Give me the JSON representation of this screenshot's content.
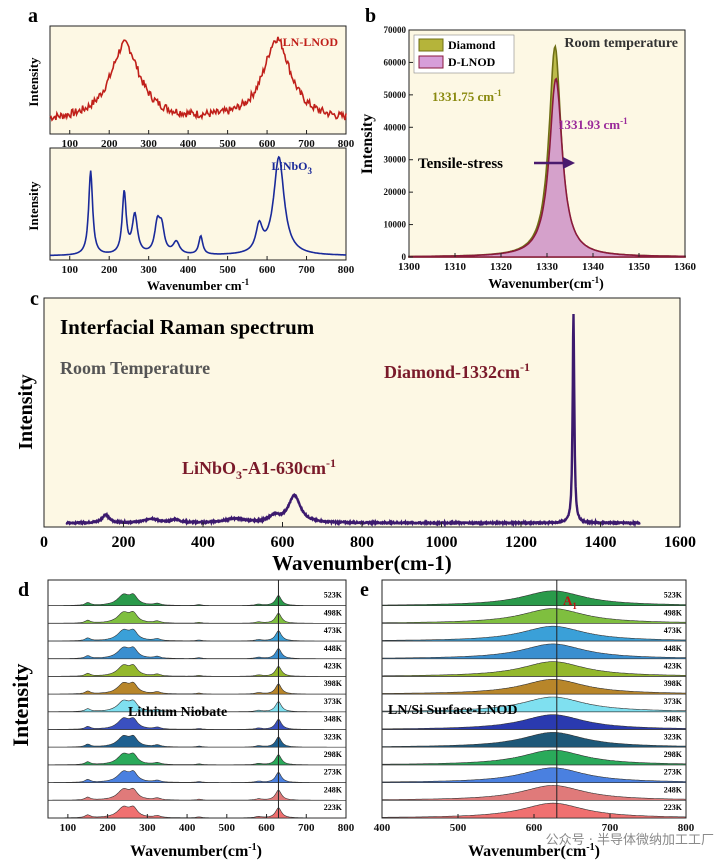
{
  "panel_labels": {
    "a": "a",
    "b": "b",
    "c": "c",
    "d": "d",
    "e": "e"
  },
  "watermark": "公众号 · 半导体微纳加工工厂",
  "chart_data": [
    {
      "id": "a-top",
      "type": "line",
      "legend": "LN-LNOD",
      "ylabel": "Intensity",
      "xlim": [
        50,
        800
      ],
      "xticks": [
        100,
        200,
        300,
        400,
        500,
        600,
        700,
        800
      ],
      "color": "#c0201a",
      "peaks": [
        {
          "center": 240,
          "height": 0.75,
          "width": 45
        },
        {
          "center": 625,
          "height": 0.8,
          "width": 42
        }
      ]
    },
    {
      "id": "a-bottom",
      "type": "line",
      "legend": "LiNbO",
      "legend_sub": "3",
      "ylabel": "Intensity",
      "xlabel": "Wavenumber cm",
      "xlabel_sup": "-1",
      "xlim": [
        50,
        800
      ],
      "xticks": [
        100,
        200,
        300,
        400,
        500,
        600,
        700,
        800
      ],
      "color": "#1a2a9a",
      "peaks": [
        {
          "center": 153,
          "height": 0.82,
          "width": 6
        },
        {
          "center": 238,
          "height": 0.6,
          "width": 6
        },
        {
          "center": 265,
          "height": 0.38,
          "width": 8
        },
        {
          "center": 322,
          "height": 0.28,
          "width": 8
        },
        {
          "center": 333,
          "height": 0.24,
          "width": 8
        },
        {
          "center": 370,
          "height": 0.12,
          "width": 10
        },
        {
          "center": 432,
          "height": 0.18,
          "width": 6
        },
        {
          "center": 580,
          "height": 0.25,
          "width": 10
        },
        {
          "center": 630,
          "height": 0.95,
          "width": 16
        }
      ]
    },
    {
      "id": "b",
      "type": "area",
      "title": "Room temperature",
      "ylabel": "Intensity",
      "xlabel": "Wavenumber(cm",
      "xlabel_sup": "-1",
      "xlabel_end": ")",
      "xlim": [
        1300,
        1360
      ],
      "ylim": [
        0,
        70000
      ],
      "xticks": [
        1300,
        1310,
        1320,
        1330,
        1340,
        1350,
        1360
      ],
      "yticks": [
        0,
        10000,
        20000,
        30000,
        40000,
        50000,
        60000,
        70000
      ],
      "series": [
        {
          "name": "Diamond",
          "peak": 1331.75,
          "height": 65000,
          "width": 1.6,
          "fill": "#b5b43a",
          "line": "#6f6f15"
        },
        {
          "name": "D-LNOD",
          "peak": 1331.93,
          "height": 55000,
          "width": 1.7,
          "fill": "#d79ed9",
          "line": "#8a1a3c"
        }
      ],
      "annotations": {
        "diamond_peak": "1331.75 cm",
        "diamond_peak_sup": "-1",
        "dlnod_peak": "1331.93 cm",
        "dlnod_peak_sup": "-1",
        "arrow_label": "Tensile-stress"
      }
    },
    {
      "id": "c",
      "type": "line",
      "title": "Interfacial Raman spectrum",
      "subtitle": "Room Temperature",
      "ylabel": "Intensity",
      "xlabel": "Wavenumber(cm-1)",
      "xlim": [
        0,
        1600
      ],
      "xticks": [
        0,
        200,
        400,
        600,
        800,
        1000,
        1200,
        1400,
        1600
      ],
      "color": "#3c1a6e",
      "annotations": {
        "diamond": "Diamond-1332cm",
        "diamond_sup": "-1",
        "linbo3": "LiNbO",
        "linbo3_sub": "3",
        "linbo3_rest": "-A1-630cm",
        "linbo3_sup": "-1"
      },
      "peaks": [
        {
          "center": 155,
          "height": 0.04,
          "width": 10
        },
        {
          "center": 270,
          "height": 0.02,
          "width": 20
        },
        {
          "center": 330,
          "height": 0.015,
          "width": 12
        },
        {
          "center": 480,
          "height": 0.02,
          "width": 30
        },
        {
          "center": 580,
          "height": 0.03,
          "width": 15
        },
        {
          "center": 630,
          "height": 0.13,
          "width": 18
        },
        {
          "center": 1332,
          "height": 1.0,
          "width": 2.5
        }
      ]
    },
    {
      "id": "d",
      "type": "stacked-area",
      "ylabel": "Intensity",
      "xlabel": "Wavenumber(cm",
      "xlabel_sup": "-1",
      "xlabel_end": ")",
      "label": "Lithium Niobate",
      "xlim": [
        50,
        800
      ],
      "xticks": [
        100,
        200,
        300,
        400,
        500,
        600,
        700,
        800
      ],
      "vline": 630,
      "temperatures": [
        "523K",
        "498K",
        "473K",
        "448K",
        "423K",
        "398K",
        "373K",
        "348K",
        "323K",
        "298K",
        "273K",
        "248K",
        "223K"
      ],
      "colors": [
        "#2a9a4a",
        "#7fbf3f",
        "#3aa0d8",
        "#3a8fd0",
        "#94b82c",
        "#b8862a",
        "#7fe0f0",
        "#3a50c0",
        "#1e6090",
        "#2aaa5a",
        "#4a80e0",
        "#e07a7a",
        "#f07070"
      ],
      "peaks": [
        {
          "center": 150,
          "height": 0.15,
          "width": 8
        },
        {
          "center": 240,
          "height": 0.55,
          "width": 18
        },
        {
          "center": 265,
          "height": 0.45,
          "width": 12
        },
        {
          "center": 325,
          "height": 0.1,
          "width": 10
        },
        {
          "center": 430,
          "height": 0.05,
          "width": 8
        },
        {
          "center": 580,
          "height": 0.07,
          "width": 10
        },
        {
          "center": 630,
          "height": 0.55,
          "width": 9
        }
      ]
    },
    {
      "id": "e",
      "type": "stacked-area",
      "label": "LN/Si Surface-LNOD",
      "peak_label": "A",
      "peak_label_sub": "1",
      "xlabel": "Wavenumber(cm",
      "xlabel_sup": "-1",
      "xlabel_end": ")",
      "xlim": [
        400,
        800
      ],
      "xticks": [
        400,
        500,
        600,
        700,
        800
      ],
      "vline": 630,
      "temperatures": [
        "523K",
        "498K",
        "473K",
        "448K",
        "423K",
        "398K",
        "373K",
        "348K",
        "323K",
        "298K",
        "273K",
        "248K",
        "223K"
      ],
      "colors": [
        "#2a9a4a",
        "#7fbf3f",
        "#3aa0d8",
        "#3a8fd0",
        "#94b82c",
        "#b8862a",
        "#7fe0f0",
        "#2a3ab0",
        "#1e5878",
        "#2aaa5a",
        "#4a80e0",
        "#e07a7a",
        "#f07070"
      ],
      "peaks": [
        {
          "center": 625,
          "height": 0.8,
          "width": 50
        }
      ]
    }
  ]
}
